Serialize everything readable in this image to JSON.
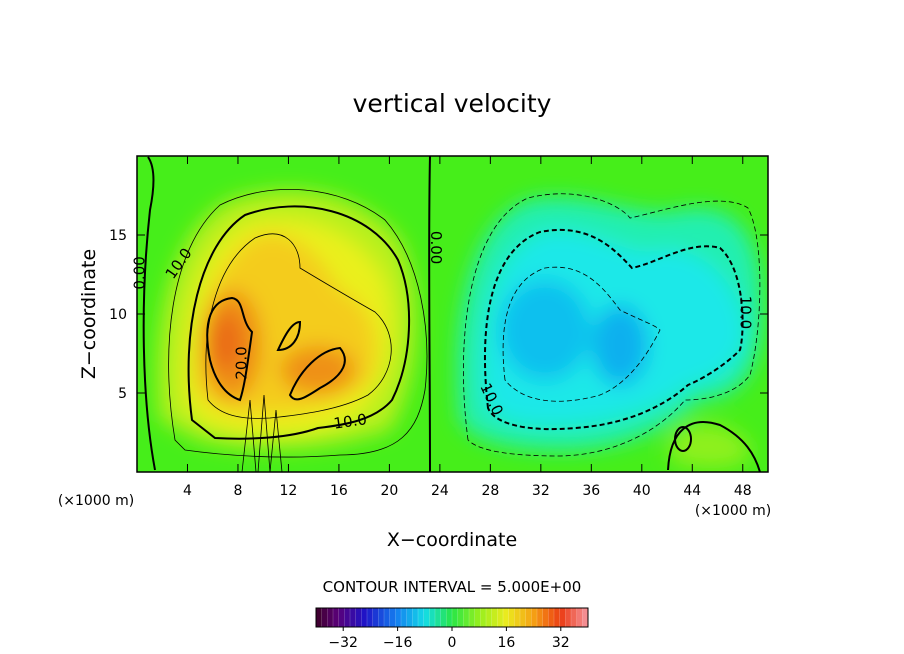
{
  "chart_data": {
    "type": "heatmap",
    "title": "vertical velocity",
    "xlabel": "X−coordinate",
    "ylabel": "Z−coordinate",
    "x_unit": "(×1000 m)",
    "y_unit": "(×1000 m)",
    "xlim": [
      0,
      50
    ],
    "ylim": [
      0,
      20
    ],
    "x_ticks": [
      4,
      8,
      12,
      16,
      20,
      24,
      28,
      32,
      36,
      40,
      44,
      48
    ],
    "x_tick_labels": [
      "4",
      "8",
      "12",
      "16",
      "20",
      "24",
      "28",
      "32",
      "36",
      "40",
      "44",
      "48"
    ],
    "y_ticks": [
      5,
      10,
      15
    ],
    "y_tick_labels": [
      "5",
      "10",
      "15"
    ],
    "contour_interval_text": "CONTOUR INTERVAL = 5.000E+00",
    "contour_interval": 5,
    "colorbar": {
      "min": -40,
      "max": 40,
      "ticks": [
        -32,
        -16,
        0,
        16,
        32
      ],
      "tick_labels": [
        "−32",
        "−16",
        "0",
        "16",
        "32"
      ]
    },
    "contour_labels": [
      {
        "text": "10.0",
        "x": 3.3,
        "y": 13.2,
        "rotate": -55
      },
      {
        "text": "0.00",
        "x": 0.2,
        "y": 12.6,
        "rotate": -90
      },
      {
        "text": "20.0",
        "x": 8.3,
        "y": 6.9,
        "rotate": -90
      },
      {
        "text": "10.0",
        "x": 16.9,
        "y": 3.2,
        "rotate": -8
      },
      {
        "text": "0.00",
        "x": 23.7,
        "y": 14.2,
        "rotate": 90
      },
      {
        "text": "10.0",
        "x": 28.1,
        "y": 4.6,
        "rotate": 65
      },
      {
        "text": "10.0",
        "x": 48.2,
        "y": 10.1,
        "rotate": 90
      }
    ],
    "features": [
      {
        "name": "updraft-core-left",
        "x": 7.5,
        "y": 8.5,
        "value": 28
      },
      {
        "name": "updraft-core-right",
        "x": 14.0,
        "y": 6.5,
        "value": 26
      },
      {
        "name": "updraft-upper",
        "x": 11.5,
        "y": 13.0,
        "value": 16
      },
      {
        "name": "downdraft-core",
        "x": 32.5,
        "y": 8.5,
        "value": -16
      },
      {
        "name": "downdraft-secondary",
        "x": 38.5,
        "y": 8.0,
        "value": -17
      },
      {
        "name": "downdraft-east",
        "x": 45.0,
        "y": 10.5,
        "value": -10
      }
    ]
  }
}
